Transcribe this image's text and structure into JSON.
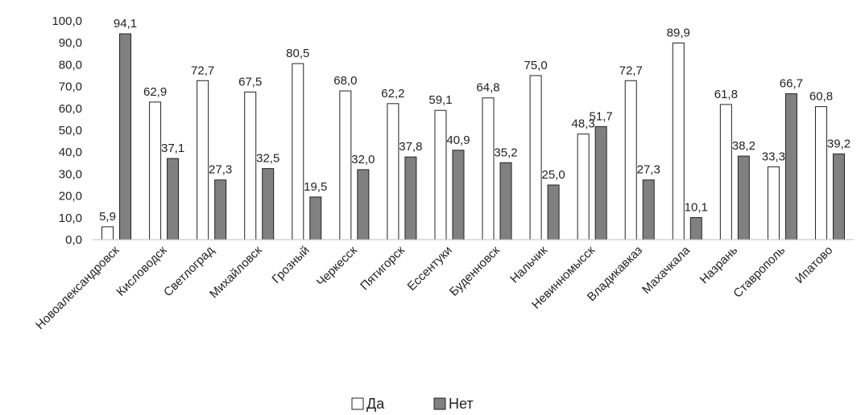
{
  "chart_data": {
    "type": "bar",
    "categories": [
      "Новоалександровск",
      "Кисловодск",
      "Светлоград",
      "Михайловск",
      "Грозный",
      "Черкесск",
      "Пятигорск",
      "Ессентуки",
      "Буденновск",
      "Нальчик",
      "Невинномысск",
      "Владикавказ",
      "Махачкала",
      "Назрань",
      "Ставрополь",
      "Ипатово"
    ],
    "series": [
      {
        "name": "Да",
        "color": "#ffffff",
        "values": [
          5.9,
          62.9,
          72.7,
          67.5,
          80.5,
          68.0,
          62.2,
          59.1,
          64.8,
          75.0,
          48.3,
          72.7,
          89.9,
          61.8,
          33.3,
          60.8
        ],
        "labels": [
          "5,9",
          "62,9",
          "72,7",
          "67,5",
          "80,5",
          "68,0",
          "62,2",
          "59,1",
          "64,8",
          "75,0",
          "48,3",
          "72,7",
          "89,9",
          "61,8",
          "33,3",
          "60,8"
        ]
      },
      {
        "name": "Нет",
        "color": "#808080",
        "values": [
          94.1,
          37.1,
          27.3,
          32.5,
          19.5,
          32.0,
          37.8,
          40.9,
          35.2,
          25.0,
          51.7,
          27.3,
          10.1,
          38.2,
          66.7,
          39.2
        ],
        "labels": [
          "94,1",
          "37,1",
          "27,3",
          "32,5",
          "19,5",
          "32,0",
          "37,8",
          "40,9",
          "35,2",
          "25,0",
          "51,7",
          "27,3",
          "10,1",
          "38,2",
          "66,7",
          "39,2"
        ]
      }
    ],
    "title": "",
    "xlabel": "",
    "ylabel": "",
    "ylim": [
      0,
      100
    ],
    "yticks": [
      0,
      10,
      20,
      30,
      40,
      50,
      60,
      70,
      80,
      90,
      100
    ],
    "ytick_labels": [
      "0,0",
      "10,0",
      "20,0",
      "30,0",
      "40,0",
      "50,0",
      "60,0",
      "70,0",
      "80,0",
      "90,0",
      "100,0"
    ],
    "grid": false,
    "legend_position": "bottom-center"
  }
}
